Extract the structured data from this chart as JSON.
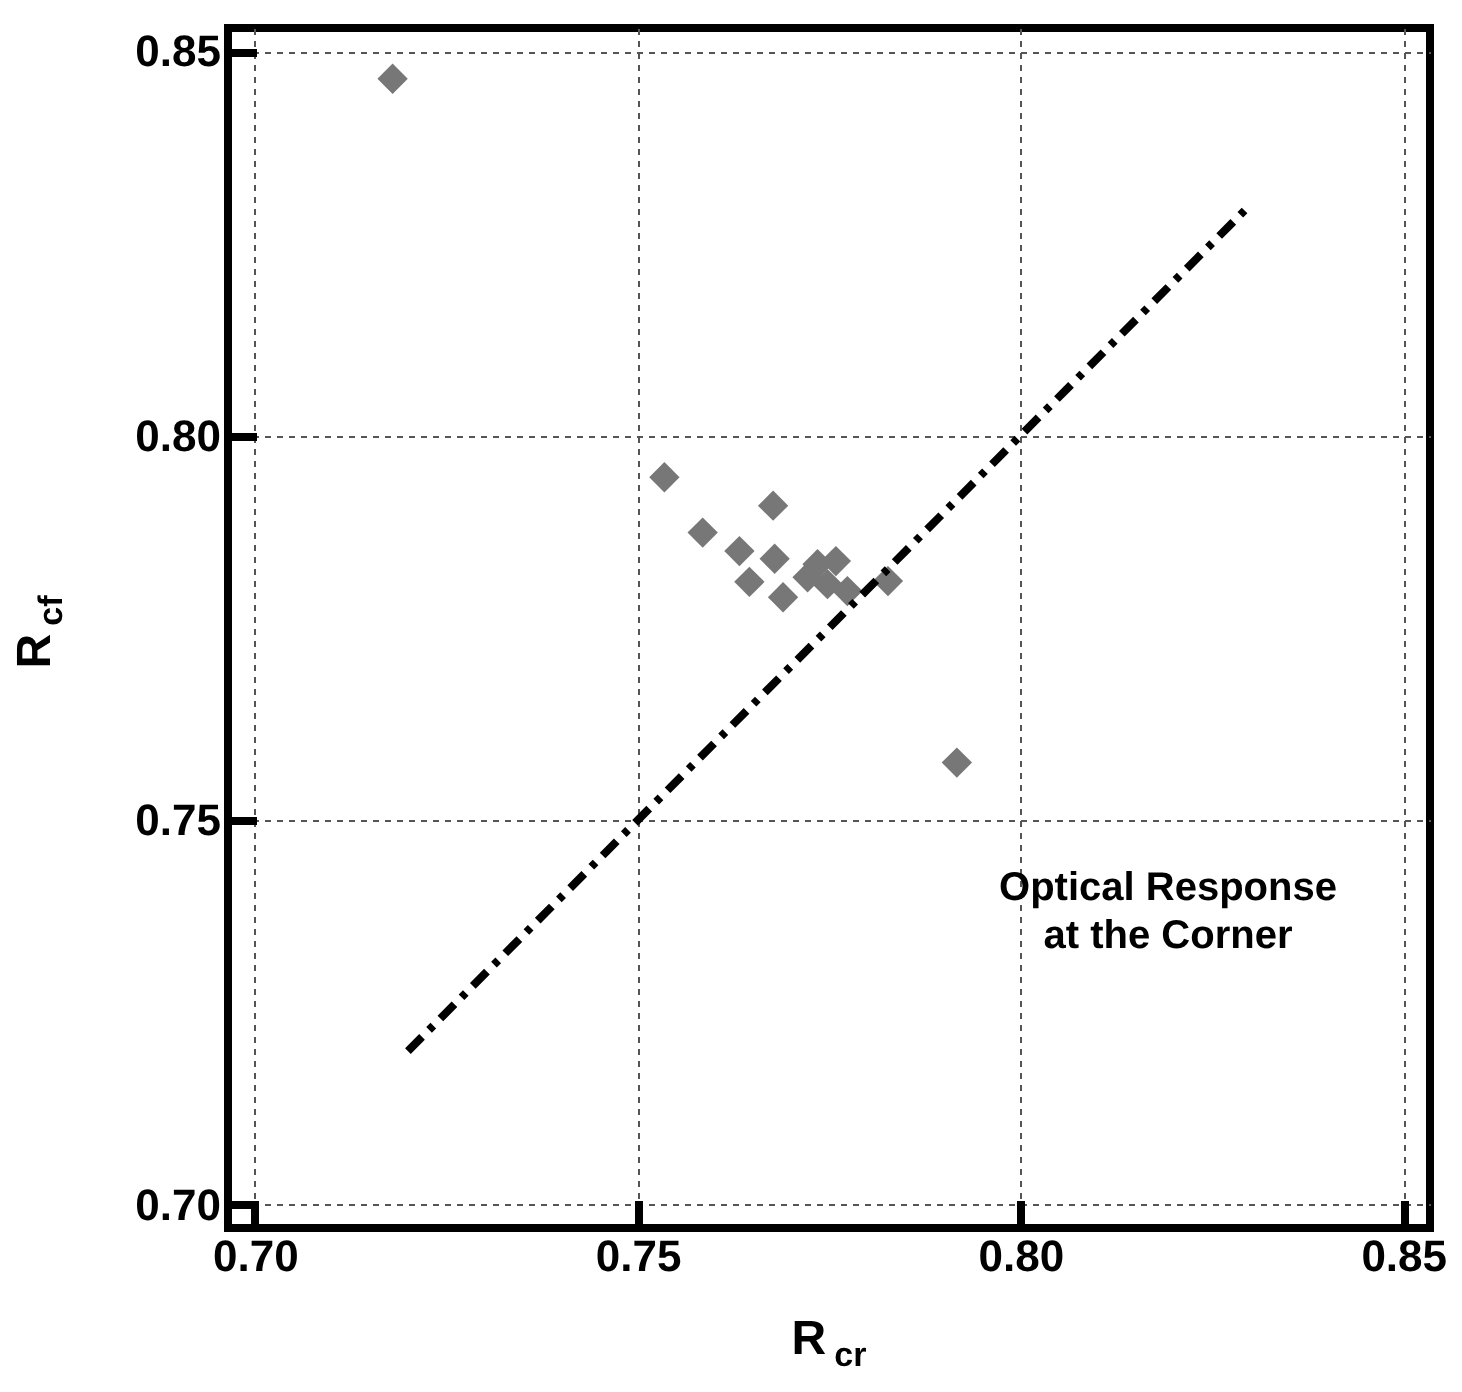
{
  "chart_data": {
    "type": "scatter",
    "xlabel": "R$_{cr}$",
    "ylabel": "R$_{cf}$",
    "xlim": [
      0.6965,
      0.8535
    ],
    "ylim": [
      0.697,
      0.853
    ],
    "xticks": [
      {
        "value": 0.7,
        "label": "0.70"
      },
      {
        "value": 0.75,
        "label": "0.75"
      },
      {
        "value": 0.8,
        "label": "0.80"
      },
      {
        "value": 0.85,
        "label": "0.85"
      }
    ],
    "yticks": [
      {
        "value": 0.7,
        "label": "0.70"
      },
      {
        "value": 0.75,
        "label": "0.75"
      },
      {
        "value": 0.8,
        "label": "0.80"
      },
      {
        "value": 0.85,
        "label": "0.85"
      }
    ],
    "grid": true,
    "series": [
      {
        "color": "#777777",
        "marker": "diamond",
        "x": [
          0.718,
          0.7535,
          0.7677,
          0.7585,
          0.7633,
          0.7679,
          0.7646,
          0.769,
          0.7735,
          0.7759,
          0.7748,
          0.7774,
          0.7722,
          0.7827,
          0.7917
        ],
        "values": [
          0.8464,
          0.7946,
          0.7909,
          0.7874,
          0.785,
          0.784,
          0.781,
          0.779,
          0.7833,
          0.7837,
          0.7807,
          0.7798,
          0.7816,
          0.7811,
          0.7575
        ]
      },
      {
        "type": "line",
        "color": "#000000",
        "line_style": "dashed",
        "marker": "none",
        "x": [
          0.72,
          0.83
        ],
        "values": [
          0.72,
          0.83
        ]
      }
    ],
    "annotations": [
      "Optical Response at the Corner"
    ]
  }
}
